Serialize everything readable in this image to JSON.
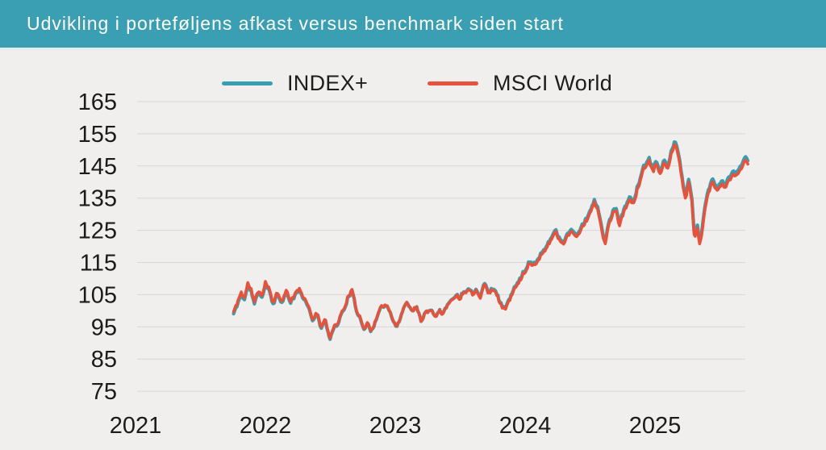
{
  "page": {
    "background": "#f0efee",
    "gridline_color": "#d8d7d5",
    "text_color": "#1b1b1b"
  },
  "header": {
    "title": "Udvikling i porteføljens afkast versus benchmark siden start",
    "background": "#3a9fb2",
    "text_color": "#ffffff"
  },
  "chart_data": {
    "type": "line",
    "title": "Udvikling i porteføljens afkast versus benchmark siden start",
    "xlabel": "",
    "ylabel": "",
    "x_axis": {
      "tick_labels": [
        "2021",
        "2022",
        "2023",
        "2024",
        "2025"
      ],
      "tick_values": [
        2021,
        2022,
        2023,
        2024,
        2025
      ],
      "range": [
        2021.0,
        2025.72
      ]
    },
    "y_axis": {
      "tick_values": [
        165,
        155,
        145,
        135,
        125,
        115,
        105,
        95,
        85,
        75
      ],
      "range": [
        75,
        165
      ]
    },
    "grid": "horizontal-only",
    "legend": [
      {
        "label": "INDEX+",
        "color": "#3a9eb1"
      },
      {
        "label": "MSCI World",
        "color": "#e5533c"
      }
    ],
    "series": [
      {
        "name": "MSCI World",
        "color": "#e5533c",
        "stroke_width": 3.6,
        "keypoints": [
          [
            2021.755,
            99.6
          ],
          [
            2021.79,
            103.0
          ],
          [
            2021.815,
            106.0
          ],
          [
            2021.84,
            104.2
          ],
          [
            2021.865,
            108.2
          ],
          [
            2021.89,
            106.8
          ],
          [
            2021.915,
            102.8
          ],
          [
            2021.945,
            106.3
          ],
          [
            2021.975,
            105.0
          ],
          [
            2022.0,
            108.8
          ],
          [
            2022.03,
            106.8
          ],
          [
            2022.06,
            102.4
          ],
          [
            2022.09,
            105.2
          ],
          [
            2022.125,
            103.2
          ],
          [
            2022.16,
            106.2
          ],
          [
            2022.19,
            102.6
          ],
          [
            2022.22,
            104.6
          ],
          [
            2022.26,
            107.2
          ],
          [
            2022.3,
            103.8
          ],
          [
            2022.335,
            101.2
          ],
          [
            2022.37,
            96.8
          ],
          [
            2022.4,
            99.6
          ],
          [
            2022.43,
            95.2
          ],
          [
            2022.46,
            97.8
          ],
          [
            2022.495,
            91.6
          ],
          [
            2022.525,
            94.6
          ],
          [
            2022.56,
            96.8
          ],
          [
            2022.6,
            100.2
          ],
          [
            2022.635,
            103.6
          ],
          [
            2022.665,
            106.8
          ],
          [
            2022.7,
            100.6
          ],
          [
            2022.73,
            97.6
          ],
          [
            2022.76,
            94.6
          ],
          [
            2022.785,
            96.2
          ],
          [
            2022.815,
            93.7
          ],
          [
            2022.85,
            97.6
          ],
          [
            2022.89,
            101.0
          ],
          [
            2022.93,
            101.9
          ],
          [
            2022.975,
            98.0
          ],
          [
            2023.01,
            94.9
          ],
          [
            2023.05,
            99.2
          ],
          [
            2023.09,
            102.3
          ],
          [
            2023.13,
            100.3
          ],
          [
            2023.165,
            101.6
          ],
          [
            2023.2,
            96.7
          ],
          [
            2023.24,
            99.8
          ],
          [
            2023.275,
            100.7
          ],
          [
            2023.31,
            98.7
          ],
          [
            2023.34,
            100.3
          ],
          [
            2023.37,
            99.3
          ],
          [
            2023.41,
            101.9
          ],
          [
            2023.445,
            103.6
          ],
          [
            2023.475,
            104.8
          ],
          [
            2023.5,
            103.4
          ],
          [
            2023.53,
            105.8
          ],
          [
            2023.56,
            107.2
          ],
          [
            2023.595,
            104.9
          ],
          [
            2023.625,
            106.8
          ],
          [
            2023.655,
            104.7
          ],
          [
            2023.69,
            107.9
          ],
          [
            2023.72,
            105.3
          ],
          [
            2023.75,
            107.3
          ],
          [
            2023.785,
            104.3
          ],
          [
            2023.82,
            101.1
          ],
          [
            2023.845,
            100.3
          ],
          [
            2023.875,
            103.0
          ],
          [
            2023.905,
            105.9
          ],
          [
            2023.935,
            108.2
          ],
          [
            2023.965,
            110.2
          ],
          [
            2023.995,
            112.2
          ],
          [
            2024.025,
            114.0
          ],
          [
            2024.055,
            114.9
          ],
          [
            2024.085,
            114.3
          ],
          [
            2024.115,
            116.7
          ],
          [
            2024.15,
            118.7
          ],
          [
            2024.18,
            120.7
          ],
          [
            2024.21,
            123.3
          ],
          [
            2024.235,
            124.7
          ],
          [
            2024.265,
            122.4
          ],
          [
            2024.295,
            120.1
          ],
          [
            2024.325,
            123.0
          ],
          [
            2024.355,
            124.7
          ],
          [
            2024.385,
            123.1
          ],
          [
            2024.415,
            124.4
          ],
          [
            2024.445,
            126.4
          ],
          [
            2024.48,
            128.6
          ],
          [
            2024.51,
            131.2
          ],
          [
            2024.535,
            133.9
          ],
          [
            2024.565,
            130.2
          ],
          [
            2024.59,
            124.6
          ],
          [
            2024.615,
            121.0
          ],
          [
            2024.645,
            126.8
          ],
          [
            2024.675,
            129.6
          ],
          [
            2024.7,
            130.9
          ],
          [
            2024.725,
            126.4
          ],
          [
            2024.755,
            130.2
          ],
          [
            2024.785,
            132.6
          ],
          [
            2024.81,
            134.9
          ],
          [
            2024.84,
            133.3
          ],
          [
            2024.87,
            138.6
          ],
          [
            2024.9,
            142.6
          ],
          [
            2024.93,
            144.6
          ],
          [
            2024.955,
            146.9
          ],
          [
            2024.985,
            143.1
          ],
          [
            2025.01,
            145.9
          ],
          [
            2025.04,
            142.9
          ],
          [
            2025.07,
            146.6
          ],
          [
            2025.1,
            144.6
          ],
          [
            2025.13,
            149.6
          ],
          [
            2025.155,
            151.3
          ],
          [
            2025.185,
            147.4
          ],
          [
            2025.21,
            140.6
          ],
          [
            2025.235,
            134.6
          ],
          [
            2025.26,
            140.2
          ],
          [
            2025.285,
            133.6
          ],
          [
            2025.305,
            122.0
          ],
          [
            2025.325,
            126.0
          ],
          [
            2025.345,
            119.6
          ],
          [
            2025.365,
            125.6
          ],
          [
            2025.39,
            132.6
          ],
          [
            2025.415,
            137.4
          ],
          [
            2025.44,
            140.4
          ],
          [
            2025.465,
            138.0
          ],
          [
            2025.49,
            137.1
          ],
          [
            2025.515,
            139.1
          ],
          [
            2025.54,
            137.4
          ],
          [
            2025.565,
            140.3
          ],
          [
            2025.595,
            141.9
          ],
          [
            2025.62,
            141.1
          ],
          [
            2025.65,
            143.3
          ],
          [
            2025.675,
            145.1
          ],
          [
            2025.7,
            147.1
          ],
          [
            2025.715,
            145.9
          ]
        ]
      },
      {
        "name": "INDEX+",
        "color": "#3a9eb1",
        "stroke_width": 4.2,
        "derived_from": "MSCI World",
        "offset_keypoints": [
          [
            2021.755,
            -0.65
          ],
          [
            2023.0,
            -0.1
          ],
          [
            2024.0,
            0.5
          ],
          [
            2025.715,
            1.05
          ]
        ]
      }
    ],
    "noise": {
      "seed": 11,
      "samples": 470,
      "amp_fast": 0.45,
      "amp_slow": 1.05
    }
  }
}
